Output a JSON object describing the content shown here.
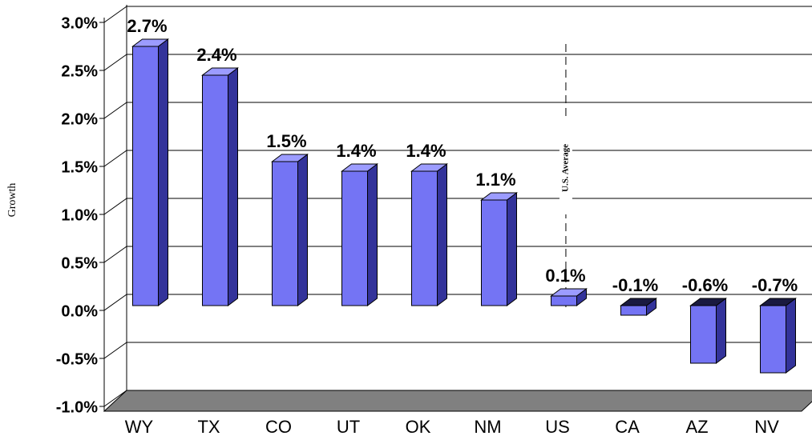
{
  "chart_data": {
    "type": "bar3d",
    "y_axis_label": "Growth",
    "annotation": "U.S. Average",
    "categories": [
      "WY",
      "TX",
      "CO",
      "UT",
      "OK",
      "NM",
      "US",
      "CA",
      "AZ",
      "NV"
    ],
    "values": [
      2.7,
      2.4,
      1.5,
      1.4,
      1.4,
      1.1,
      0.1,
      -0.1,
      -0.6,
      -0.7
    ],
    "value_labels": [
      "2.7%",
      "2.4%",
      "1.5%",
      "1.4%",
      "1.4%",
      "1.1%",
      "0.1%",
      "-0.1%",
      "-0.6%",
      "-0.7%"
    ],
    "color": "#7474f4",
    "ylim": [
      -1.0,
      3.0
    ],
    "yticks": [
      {
        "value": -1.0,
        "label": "-1.0%"
      },
      {
        "value": -0.5,
        "label": "-0.5%"
      },
      {
        "value": 0,
        "label": "0.0%"
      },
      {
        "value": 0.5,
        "label": "0.5%"
      },
      {
        "value": 1.0,
        "label": "1.0%"
      },
      {
        "value": 1.5,
        "label": "1.5%"
      },
      {
        "value": 2.0,
        "label": "2.0%"
      },
      {
        "value": 2.5,
        "label": "2.5%"
      },
      {
        "value": 3.0,
        "label": "3.0%"
      }
    ],
    "grid": true
  }
}
